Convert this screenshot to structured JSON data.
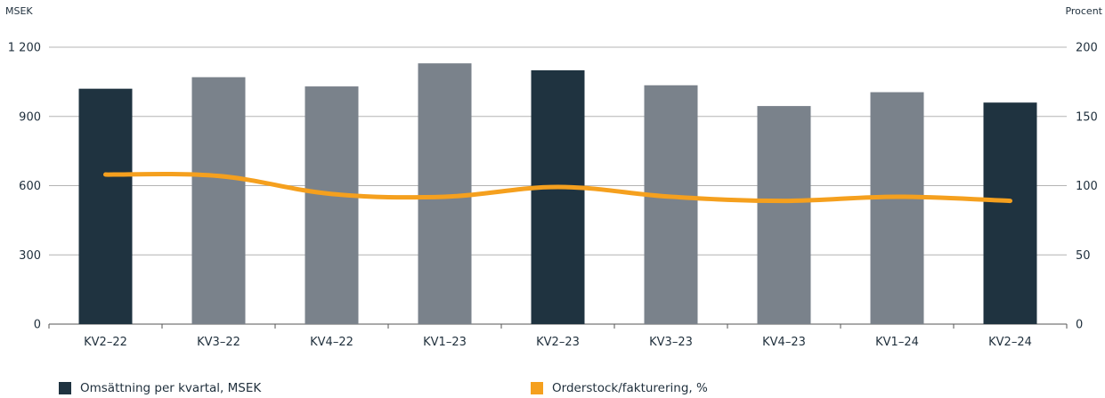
{
  "chart_data": {
    "type": "bar",
    "left_axis_unit": "MSEK",
    "right_axis_unit": "Procent",
    "categories": [
      "KV2–22",
      "KV3–22",
      "KV4–22",
      "KV1–23",
      "KV2–23",
      "KV3–23",
      "KV4–23",
      "KV1–24",
      "KV2–24"
    ],
    "series": [
      {
        "name": "Omsättning per kvartal, MSEK",
        "type": "bar",
        "axis": "left",
        "values": [
          1020,
          1070,
          1030,
          1130,
          1100,
          1035,
          945,
          1005,
          960
        ],
        "highlight": [
          true,
          false,
          false,
          false,
          true,
          false,
          false,
          false,
          true
        ]
      },
      {
        "name": "Orderstock/fakturering, %",
        "type": "line",
        "axis": "right",
        "values": [
          108,
          107,
          94,
          92,
          99,
          92,
          89,
          92,
          89
        ]
      }
    ],
    "left_ylim": [
      0,
      1200
    ],
    "left_yticks": [
      "0",
      "300",
      "600",
      "900",
      "1 200"
    ],
    "left_ytick_values": [
      0,
      300,
      600,
      900,
      1200
    ],
    "right_ylim": [
      0,
      200
    ],
    "right_yticks": [
      "0",
      "50",
      "100",
      "150",
      "200"
    ],
    "right_ytick_values": [
      0,
      50,
      100,
      150,
      200
    ],
    "grid": true,
    "legend_position": "bottom",
    "colors": {
      "bar_highlight": "#1f3340",
      "bar_default": "#7a828b",
      "line": "#f5a01e",
      "grid": "#b4b4b4",
      "axis": "#555555"
    }
  }
}
